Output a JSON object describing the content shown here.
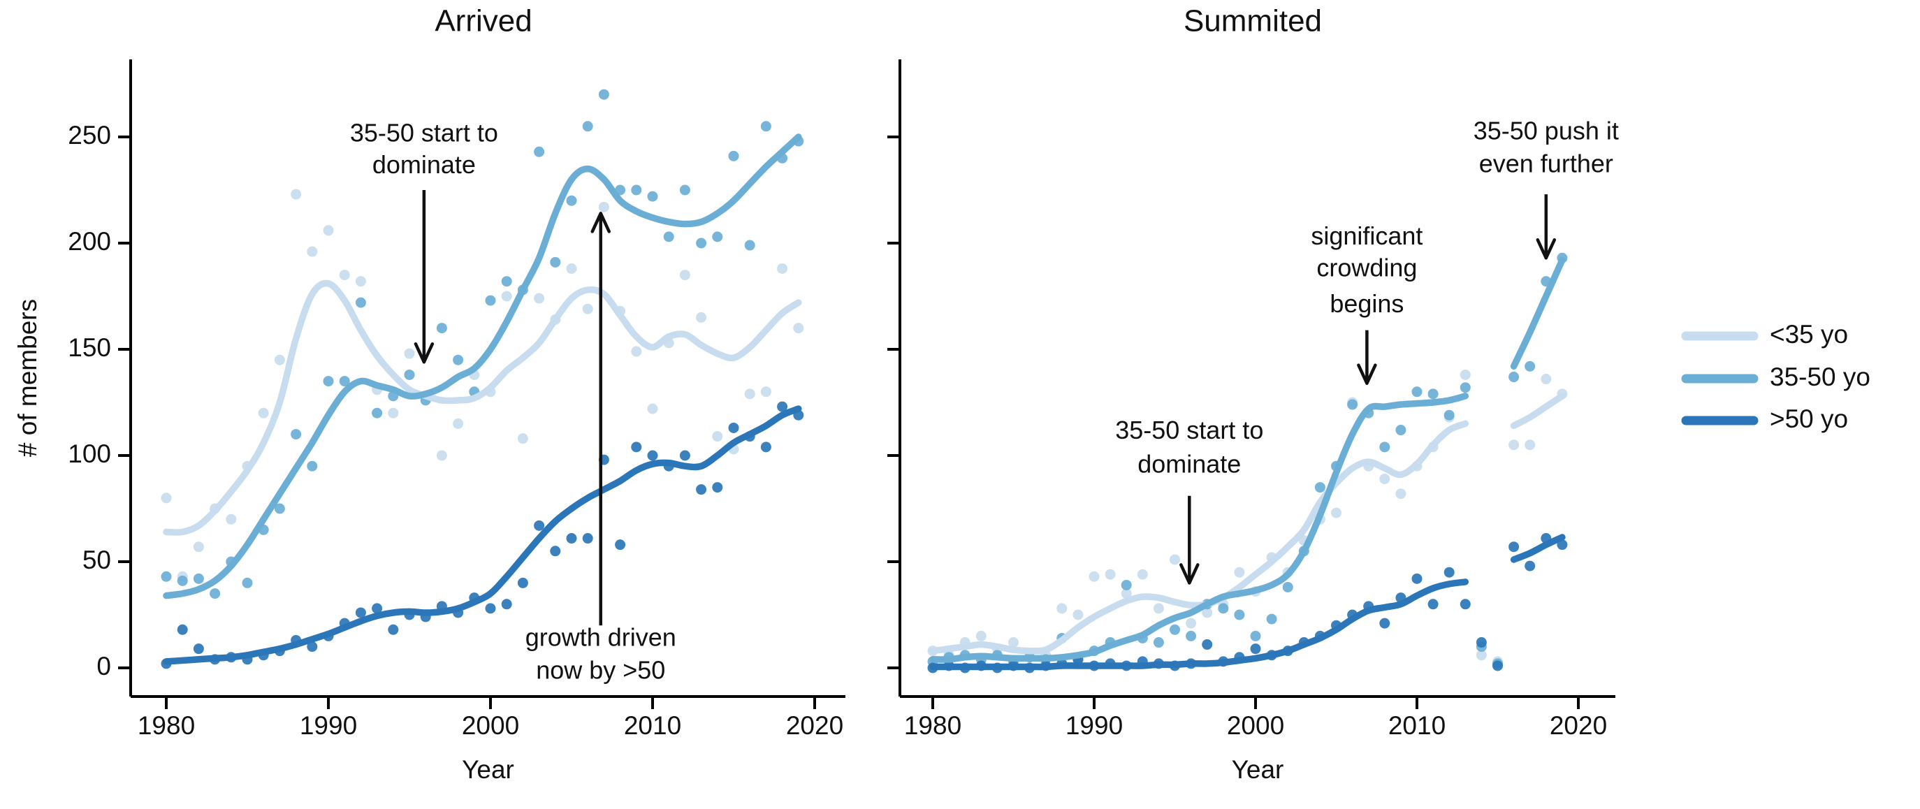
{
  "figure": {
    "background": "#ffffff",
    "text_color": "#111111",
    "axis_color": "#000000",
    "ylabel": "# of members",
    "xlabel": "Year",
    "legend": {
      "position": "right",
      "items": [
        {
          "label": "<35 yo",
          "color": "#c7dcee"
        },
        {
          "label": "35-50 yo",
          "color": "#6aaed6"
        },
        {
          "label": ">50 yo",
          "color": "#2a76b8"
        }
      ]
    }
  },
  "chart_data": [
    {
      "type": "scatter",
      "title": "Arrived",
      "xlabel": "Year",
      "ylabel": "# of members",
      "xticks": [
        1980,
        1990,
        2000,
        2010,
        2020
      ],
      "yticks": [
        0,
        50,
        100,
        150,
        200,
        250
      ],
      "xlim": [
        1977.8,
        2021.9
      ],
      "ylim": [
        -13.5,
        286.5
      ],
      "grid": false,
      "x": [
        1980,
        1981,
        1982,
        1983,
        1984,
        1985,
        1986,
        1987,
        1988,
        1989,
        1990,
        1991,
        1992,
        1993,
        1994,
        1995,
        1996,
        1997,
        1998,
        1999,
        2000,
        2001,
        2002,
        2003,
        2004,
        2005,
        2006,
        2007,
        2008,
        2009,
        2010,
        2011,
        2012,
        2013,
        2014,
        2015,
        2016,
        2017,
        2018,
        2019
      ],
      "series": [
        {
          "name": "<35 yo",
          "color": "#c7dcee",
          "trend": [
            64,
            64,
            67,
            74,
            83,
            93,
            106,
            125,
            155,
            176,
            181,
            173,
            159,
            147,
            138,
            131,
            128,
            126,
            126,
            127,
            132,
            140,
            146,
            153,
            164,
            174,
            178,
            176,
            166,
            156,
            151,
            156,
            157,
            152,
            148,
            146,
            151,
            159,
            167,
            172
          ],
          "points": [
            80,
            43,
            57,
            75,
            70,
            95,
            120,
            145,
            223,
            196,
            206,
            185,
            182,
            131,
            120,
            148,
            128,
            100,
            115,
            138,
            130,
            175,
            108,
            174,
            164,
            188,
            169,
            217,
            168,
            149,
            122,
            153,
            185,
            165,
            109,
            103,
            129,
            130,
            188,
            160
          ]
        },
        {
          "name": "35-50 yo",
          "color": "#6aaed6",
          "trend": [
            34,
            35,
            37,
            41,
            48,
            58,
            70,
            82,
            94,
            106,
            119,
            130,
            135,
            133,
            131,
            128,
            129,
            132,
            137,
            141,
            150,
            163,
            178,
            193,
            214,
            230,
            235,
            230,
            220,
            215,
            212,
            210,
            209,
            210,
            214,
            220,
            228,
            236,
            243,
            250
          ],
          "points": [
            43,
            41,
            42,
            35,
            50,
            40,
            65,
            75,
            110,
            95,
            135,
            135,
            172,
            120,
            128,
            138,
            126,
            160,
            145,
            130,
            173,
            182,
            178,
            243,
            191,
            220,
            255,
            270,
            225,
            225,
            222,
            203,
            225,
            200,
            203,
            241,
            199,
            255,
            240,
            248
          ]
        },
        {
          "name": ">50 yo",
          "color": "#2a76b8",
          "trend": [
            3,
            3.5,
            4,
            4.5,
            5,
            6,
            7.5,
            9,
            11,
            13.5,
            16,
            19,
            22,
            24.5,
            26,
            26.5,
            26,
            26.5,
            28,
            31,
            35,
            43,
            52,
            61,
            69,
            75,
            80,
            84,
            88,
            93,
            96,
            96.5,
            95,
            95,
            100,
            106,
            110,
            114,
            119,
            122
          ],
          "points": [
            2,
            18,
            9,
            4,
            5,
            4,
            6,
            8,
            13,
            10,
            15,
            21,
            26,
            28,
            18,
            25,
            24,
            29,
            26,
            33,
            28,
            30,
            40,
            67,
            55,
            61,
            61,
            98,
            58,
            104,
            100,
            95,
            100,
            84,
            85,
            113,
            109,
            104,
            123,
            119
          ]
        }
      ],
      "annotations": [
        {
          "lines": [
            "35-50 start to",
            "dominate"
          ],
          "x": 1995.9,
          "line_y": [
            251,
            236
          ],
          "arrow_from": 225,
          "arrow_to": 144,
          "direction": "down"
        },
        {
          "lines": [
            "growth driven",
            "now by >50"
          ],
          "x": 2006.8,
          "line_y": [
            13.5,
            -2
          ],
          "arrow_from": 20,
          "arrow_to": 214,
          "direction": "up"
        }
      ]
    },
    {
      "type": "scatter",
      "title": "Summited",
      "xlabel": "Year",
      "ylabel": "",
      "xticks": [
        1980,
        1990,
        2000,
        2010,
        2020
      ],
      "yticks": [
        0,
        50,
        100,
        150,
        200,
        250
      ],
      "xlim": [
        1977.8,
        2021.9
      ],
      "ylim": [
        -13.5,
        286.5
      ],
      "grid": false,
      "x": [
        1980,
        1981,
        1982,
        1983,
        1984,
        1985,
        1986,
        1987,
        1988,
        1989,
        1990,
        1991,
        1992,
        1993,
        1994,
        1995,
        1996,
        1997,
        1998,
        1999,
        2000,
        2001,
        2002,
        2003,
        2004,
        2005,
        2006,
        2007,
        2008,
        2009,
        2010,
        2011,
        2012,
        2013,
        2014,
        2015,
        2016,
        2017,
        2018,
        2019
      ],
      "series": [
        {
          "name": "<35 yo",
          "color": "#c7dcee",
          "trend": [
            8,
            9,
            10,
            11,
            10,
            8.5,
            8,
            8.5,
            13,
            19,
            24,
            28,
            31.5,
            33.5,
            33,
            31,
            29.5,
            30,
            33,
            38,
            44,
            50,
            57,
            65,
            78,
            87,
            94,
            97,
            94,
            91,
            96,
            105,
            112,
            115,
            null,
            null,
            114,
            118,
            123,
            128
          ],
          "points": [
            8,
            6,
            12,
            15,
            9,
            12,
            7,
            6,
            28,
            25,
            43,
            44,
            35,
            44,
            28,
            51,
            21,
            26,
            30,
            45,
            36,
            52,
            45,
            60,
            70,
            73,
            125,
            95,
            89,
            82,
            95,
            104,
            118,
            138,
            6,
            3,
            105,
            105,
            136,
            129
          ]
        },
        {
          "name": "35-50 yo",
          "color": "#6aaed6",
          "trend": [
            4,
            4,
            5,
            5.5,
            5,
            4.5,
            4.5,
            4.5,
            5,
            6,
            7.5,
            10.5,
            13,
            15.5,
            20,
            23.5,
            26,
            30,
            33.5,
            35,
            36.5,
            39,
            44,
            55,
            72,
            92,
            110,
            122,
            123,
            124,
            124.5,
            125,
            126,
            128,
            null,
            null,
            142,
            158,
            175,
            192
          ],
          "points": [
            3,
            5,
            6,
            4,
            6,
            3,
            5,
            4,
            14,
            4,
            8,
            12,
            39,
            14,
            12,
            18,
            15,
            30,
            28,
            25,
            15,
            23,
            38,
            55,
            85,
            95,
            124,
            120,
            104,
            112,
            130,
            129,
            119,
            132,
            10,
            2,
            137,
            142,
            182,
            193
          ]
        },
        {
          "name": ">50 yo",
          "color": "#2a76b8",
          "trend": [
            0.5,
            0.5,
            0.5,
            0.5,
            0.5,
            0.5,
            0.5,
            0.5,
            1,
            1,
            1,
            1,
            1,
            1,
            1.5,
            1.5,
            2,
            2,
            2.5,
            3.5,
            4.5,
            6,
            8,
            11,
            14,
            18,
            23,
            27,
            28.5,
            30,
            34,
            37.5,
            39.5,
            40.5,
            null,
            null,
            51,
            54,
            58,
            61.5
          ],
          "points": [
            0,
            1,
            0,
            1,
            0,
            1,
            0,
            1,
            2,
            4,
            1,
            2,
            1,
            3,
            2,
            1,
            2,
            11,
            3,
            5,
            9,
            6,
            8,
            12,
            15,
            20,
            25,
            29,
            21,
            33,
            42,
            30,
            45,
            30,
            12,
            1,
            57,
            48,
            61,
            58
          ]
        }
      ],
      "annotations": [
        {
          "lines": [
            "35-50 start to",
            "dominate"
          ],
          "x": 1995.9,
          "line_y": [
            111,
            95
          ],
          "arrow_from": 81,
          "arrow_to": 40,
          "direction": "down"
        },
        {
          "lines": [
            "significant",
            "crowding",
            "begins"
          ],
          "x": 2006.9,
          "line_y": [
            202.5,
            187.5,
            170.5
          ],
          "arrow_from": 159,
          "arrow_to": 134,
          "direction": "down"
        },
        {
          "lines": [
            "35-50 push it",
            "even further"
          ],
          "x": 2018.0,
          "line_y": [
            252,
            236.5
          ],
          "arrow_from": 223,
          "arrow_to": 193,
          "direction": "down"
        }
      ]
    }
  ]
}
